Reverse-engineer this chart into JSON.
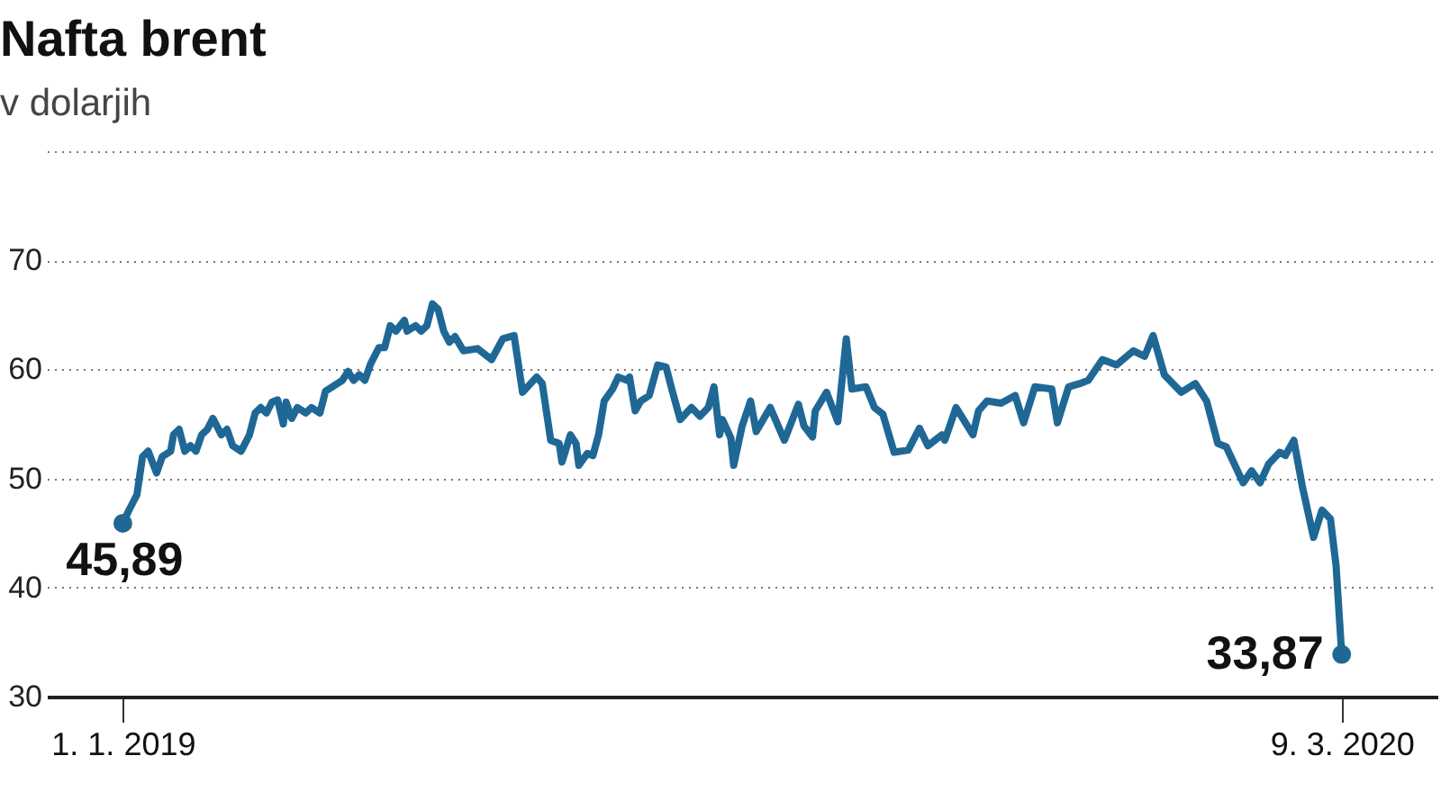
{
  "chart_data": {
    "type": "line",
    "title": "Nafta brent",
    "subtitle": "v dolarjih",
    "x": [
      "2019-01-01",
      "2019-01-03",
      "2019-01-06",
      "2019-01-08",
      "2019-01-10",
      "2019-01-13",
      "2019-01-15",
      "2019-01-18",
      "2019-01-19",
      "2019-01-21",
      "2019-01-23",
      "2019-01-25",
      "2019-01-27",
      "2019-01-29",
      "2019-01-31",
      "2019-02-02",
      "2019-02-05",
      "2019-02-07",
      "2019-02-09",
      "2019-02-12",
      "2019-02-15",
      "2019-02-17",
      "2019-02-19",
      "2019-02-21",
      "2019-02-23",
      "2019-02-25",
      "2019-02-27",
      "2019-02-28",
      "2019-03-02",
      "2019-03-04",
      "2019-03-07",
      "2019-03-09",
      "2019-03-12",
      "2019-03-14",
      "2019-03-17",
      "2019-03-20",
      "2019-03-22",
      "2019-03-24",
      "2019-03-26",
      "2019-03-28",
      "2019-03-30",
      "2019-04-02",
      "2019-04-04",
      "2019-04-06",
      "2019-04-08",
      "2019-04-11",
      "2019-04-12",
      "2019-04-15",
      "2019-04-17",
      "2019-04-19",
      "2019-04-21",
      "2019-04-23",
      "2019-04-25",
      "2019-04-27",
      "2019-04-29",
      "2019-05-02",
      "2019-05-07",
      "2019-05-12",
      "2019-05-16",
      "2019-05-20",
      "2019-05-23",
      "2019-05-28",
      "2019-05-30",
      "2019-06-02",
      "2019-06-05",
      "2019-06-06",
      "2019-06-09",
      "2019-06-11",
      "2019-06-12",
      "2019-06-15",
      "2019-06-17",
      "2019-06-19",
      "2019-06-21",
      "2019-06-24",
      "2019-06-26",
      "2019-06-29",
      "2019-06-30",
      "2019-07-02",
      "2019-07-04",
      "2019-07-07",
      "2019-07-10",
      "2019-07-13",
      "2019-07-15",
      "2019-07-18",
      "2019-07-22",
      "2019-07-25",
      "2019-07-28",
      "2019-07-30",
      "2019-08-01",
      "2019-08-02",
      "2019-08-05",
      "2019-08-06",
      "2019-08-09",
      "2019-08-12",
      "2019-08-14",
      "2019-08-19",
      "2019-08-24",
      "2019-08-29",
      "2019-08-31",
      "2019-09-03",
      "2019-09-04",
      "2019-09-08",
      "2019-09-12",
      "2019-09-15",
      "2019-09-17",
      "2019-09-22",
      "2019-09-25",
      "2019-09-28",
      "2019-10-02",
      "2019-10-07",
      "2019-10-11",
      "2019-10-14",
      "2019-10-19",
      "2019-10-20",
      "2019-10-24",
      "2019-10-30",
      "2019-11-01",
      "2019-11-04",
      "2019-11-09",
      "2019-11-14",
      "2019-11-17",
      "2019-11-21",
      "2019-11-27",
      "2019-11-29",
      "2019-12-03",
      "2019-12-07",
      "2019-12-10",
      "2019-12-15",
      "2019-12-20",
      "2019-12-26",
      "2019-12-30",
      "2020-01-02",
      "2020-01-06",
      "2020-01-12",
      "2020-01-17",
      "2020-01-21",
      "2020-01-25",
      "2020-01-28",
      "2020-02-03",
      "2020-02-06",
      "2020-02-09",
      "2020-02-12",
      "2020-02-16",
      "2020-02-18",
      "2020-02-21",
      "2020-02-24",
      "2020-02-28",
      "2020-03-02",
      "2020-03-05",
      "2020-03-07",
      "2020-03-09"
    ],
    "series": [
      {
        "color": "#1f6896",
        "values": [
          45.89,
          47,
          48.5,
          52,
          52.5,
          50.5,
          52,
          52.5,
          54,
          54.5,
          52.5,
          53,
          52.5,
          54,
          54.5,
          55.5,
          54,
          54.5,
          53,
          52.5,
          54,
          56,
          56.5,
          56,
          57,
          57.2,
          55,
          57,
          55.5,
          56.5,
          56,
          56.5,
          56,
          58,
          58.5,
          59,
          59.8,
          59,
          59.5,
          59,
          60.5,
          62,
          62,
          64,
          63.5,
          64.5,
          63.5,
          64,
          63.5,
          64,
          66,
          65.5,
          63.5,
          62.5,
          63,
          61.7,
          61.9,
          60.9,
          62.8,
          63.1,
          57.9,
          59.3,
          58.7,
          53.5,
          53.2,
          51.5,
          54,
          53.2,
          51.2,
          52.3,
          52.1,
          54,
          57.1,
          58.2,
          59.3,
          59,
          59.3,
          56.2,
          57.1,
          57.6,
          60.4,
          60.2,
          58.2,
          55.4,
          56.5,
          55.7,
          56.5,
          58.4,
          54,
          55.4,
          53.7,
          51.2,
          54.8,
          57.1,
          54.3,
          56.5,
          53.5,
          56.8,
          54.8,
          53.8,
          56.2,
          57.9,
          55.2,
          62.8,
          58.2,
          58.4,
          56.5,
          55.9,
          52.4,
          52.6,
          54.6,
          53,
          54,
          53.5,
          56.5,
          54,
          56.2,
          57.1,
          56.9,
          57.6,
          55.1,
          58.4,
          58.2,
          55.1,
          58.4,
          58.7,
          59,
          60.9,
          60.4,
          61.7,
          61.2,
          63.1,
          59.5,
          57.9,
          58.7,
          57.1,
          53.2,
          52.9,
          49.6,
          50.7,
          49.6,
          51.3,
          52.4,
          52.1,
          53.5,
          49.3,
          44.6,
          47.1,
          46.3,
          42,
          33.87
        ],
        "value_labels": [
          "45,89",
          null,
          null,
          null,
          null,
          null,
          null,
          null,
          null,
          null,
          null,
          null,
          null,
          null,
          null,
          null,
          null,
          null,
          null,
          null,
          null,
          null,
          null,
          null,
          null,
          null,
          null,
          null,
          null,
          null,
          null,
          null,
          null,
          null,
          null,
          null,
          null,
          null,
          null,
          null,
          null,
          null,
          null,
          null,
          null,
          null,
          null,
          null,
          null,
          null,
          null,
          null,
          null,
          null,
          null,
          null,
          null,
          null,
          null,
          null,
          null,
          null,
          null,
          null,
          null,
          null,
          null,
          null,
          null,
          null,
          null,
          null,
          null,
          null,
          null,
          null,
          null,
          null,
          null,
          null,
          null,
          null,
          null,
          null,
          null,
          null,
          null,
          null,
          null,
          null,
          null,
          null,
          null,
          null,
          null,
          null,
          null,
          null,
          null,
          null,
          null,
          null,
          null,
          null,
          null,
          null,
          null,
          null,
          null,
          null,
          null,
          null,
          null,
          null,
          null,
          null,
          null,
          null,
          null,
          null,
          null,
          null,
          null,
          null,
          null,
          null,
          null,
          null,
          null,
          null,
          null,
          null,
          null,
          null,
          null,
          null,
          null,
          null,
          null,
          null,
          null,
          null,
          null,
          null,
          null,
          null,
          null,
          null,
          null,
          null,
          "33,87"
        ]
      }
    ],
    "xlim": [
      "2018-12-05",
      "2020-04-12"
    ],
    "xticks": [
      {
        "value": "2019-01-01",
        "label": "1. 1. 2019"
      },
      {
        "value": "2020-03-09",
        "label": "9. 3. 2020"
      }
    ],
    "ylim": [
      30,
      80
    ],
    "yticks": [
      30,
      40,
      50,
      60,
      70,
      {
        "value": 80,
        "label": null
      }
    ],
    "grid": "y",
    "line_style": "solid",
    "legend": false
  }
}
